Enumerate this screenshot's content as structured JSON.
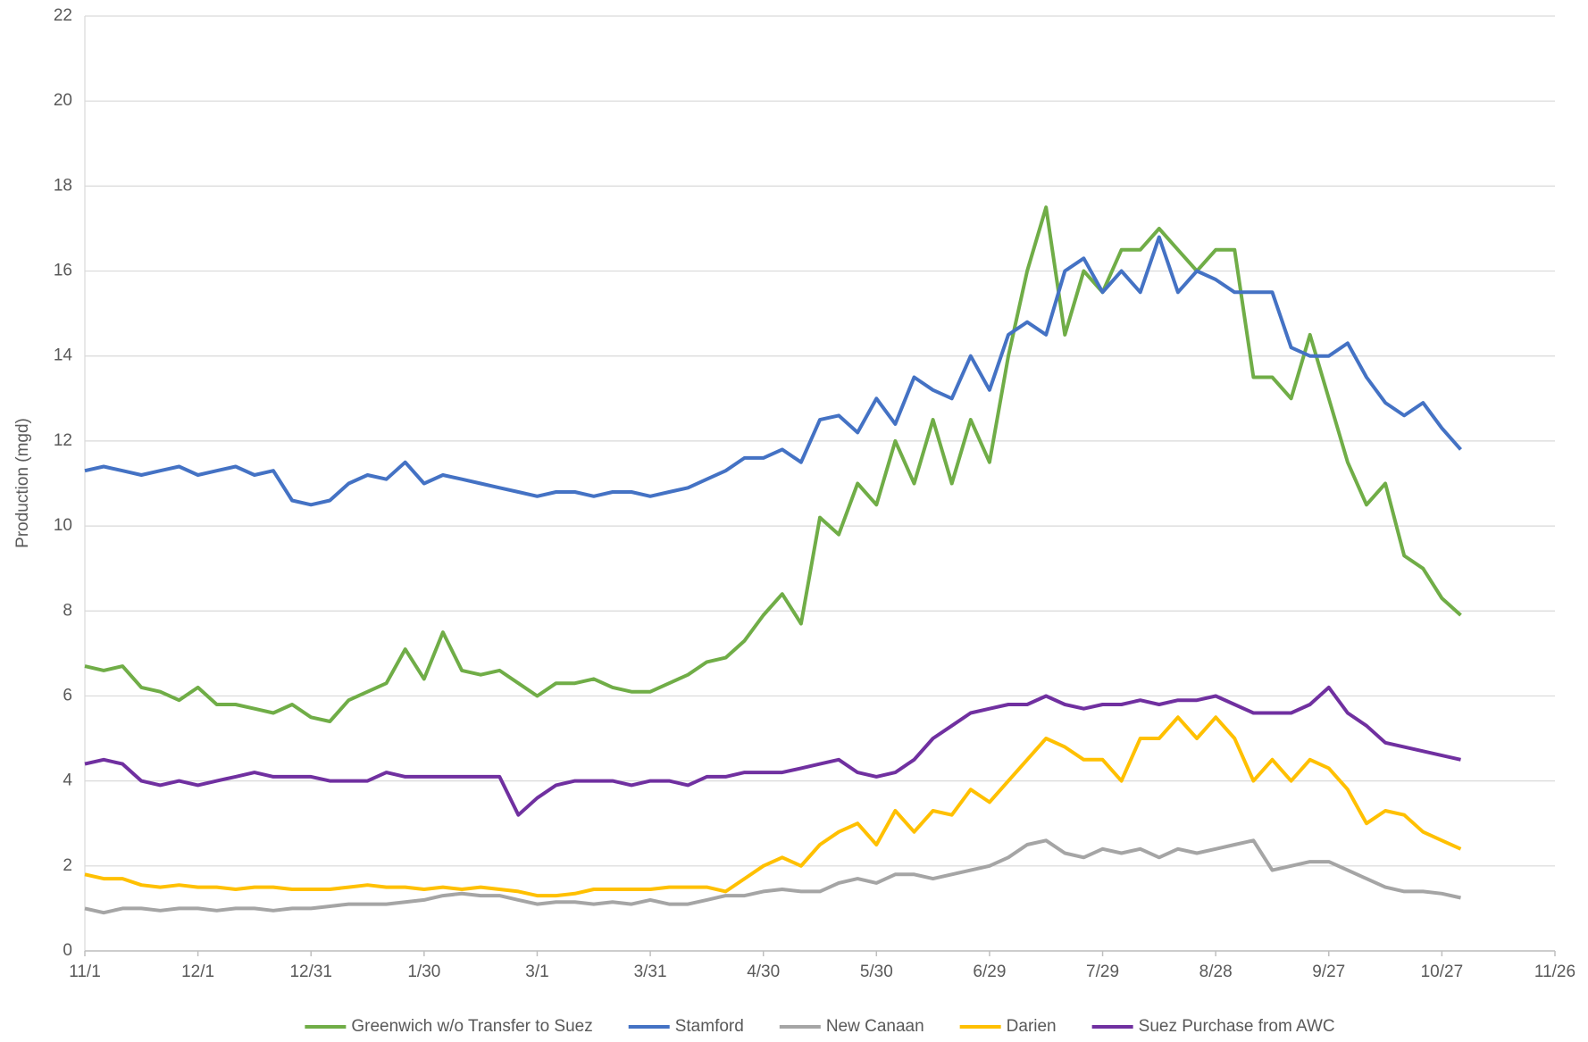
{
  "chart_data": {
    "type": "line",
    "ylabel": "Production (mgd)",
    "x": [
      0,
      5,
      10,
      15,
      20,
      25,
      30,
      35,
      40,
      45,
      50,
      55,
      60,
      65,
      70,
      75,
      80,
      85,
      90,
      95,
      100,
      105,
      110,
      115,
      120,
      125,
      130,
      135,
      140,
      145,
      150,
      155,
      160,
      165,
      170,
      175,
      180,
      185,
      190,
      195,
      200,
      205,
      210,
      215,
      220,
      225,
      230,
      235,
      240,
      245,
      250,
      255,
      260,
      265,
      270,
      275,
      280,
      285,
      290,
      295,
      300,
      305,
      310,
      315,
      320,
      325,
      330,
      335,
      340,
      345,
      350,
      355,
      360,
      365
    ],
    "xlim": [
      0,
      390
    ],
    "xticks": [
      {
        "value": 0,
        "label": "11/1"
      },
      {
        "value": 30,
        "label": "12/1"
      },
      {
        "value": 60,
        "label": "12/31"
      },
      {
        "value": 90,
        "label": "1/30"
      },
      {
        "value": 120,
        "label": "3/1"
      },
      {
        "value": 150,
        "label": "3/31"
      },
      {
        "value": 180,
        "label": "4/30"
      },
      {
        "value": 210,
        "label": "5/30"
      },
      {
        "value": 240,
        "label": "6/29"
      },
      {
        "value": 270,
        "label": "7/29"
      },
      {
        "value": 300,
        "label": "8/28"
      },
      {
        "value": 330,
        "label": "9/27"
      },
      {
        "value": 360,
        "label": "10/27"
      },
      {
        "value": 390,
        "label": "11/26"
      }
    ],
    "ylim": [
      0,
      22
    ],
    "yticks": [
      0,
      2,
      4,
      6,
      8,
      10,
      12,
      14,
      16,
      18,
      20,
      22
    ],
    "grid": true,
    "legend": "bottom",
    "series": [
      {
        "name": "Greenwich w/o Transfer to Suez",
        "color": "#70ad47",
        "values": [
          6.7,
          6.6,
          6.7,
          6.2,
          6.1,
          5.9,
          6.2,
          5.8,
          5.8,
          5.7,
          5.6,
          5.8,
          5.5,
          5.4,
          5.9,
          6.1,
          6.3,
          7.1,
          6.4,
          7.5,
          6.6,
          6.5,
          6.6,
          6.3,
          6.0,
          6.3,
          6.3,
          6.4,
          6.2,
          6.1,
          6.1,
          6.3,
          6.5,
          6.8,
          6.9,
          7.3,
          7.9,
          8.4,
          7.7,
          10.2,
          9.8,
          11.0,
          10.5,
          12.0,
          11.0,
          12.5,
          11.0,
          12.5,
          11.5,
          14.0,
          16.0,
          17.5,
          14.5,
          16.0,
          15.5,
          16.5,
          16.5,
          17.0,
          16.5,
          16.0,
          16.5,
          16.5,
          13.5,
          13.5,
          13.0,
          14.5,
          13.0,
          11.5,
          10.5,
          11.0,
          9.3,
          9.0,
          8.3,
          7.9
        ]
      },
      {
        "name": "Stamford",
        "color": "#4472c4",
        "values": [
          11.3,
          11.4,
          11.3,
          11.2,
          11.3,
          11.4,
          11.2,
          11.3,
          11.4,
          11.2,
          11.3,
          10.6,
          10.5,
          10.6,
          11.0,
          11.2,
          11.1,
          11.5,
          11.0,
          11.2,
          11.1,
          11.0,
          10.9,
          10.8,
          10.7,
          10.8,
          10.8,
          10.7,
          10.8,
          10.8,
          10.7,
          10.8,
          10.9,
          11.1,
          11.3,
          11.6,
          11.6,
          11.8,
          11.5,
          12.5,
          12.6,
          12.2,
          13.0,
          12.4,
          13.5,
          13.2,
          13.0,
          14.0,
          13.2,
          14.5,
          14.8,
          14.5,
          16.0,
          16.3,
          15.5,
          16.0,
          15.5,
          16.8,
          15.5,
          16.0,
          15.8,
          15.5,
          15.5,
          15.5,
          14.2,
          14.0,
          14.0,
          14.3,
          13.5,
          12.9,
          12.6,
          12.9,
          12.3,
          11.8
        ]
      },
      {
        "name": "New Canaan",
        "color": "#a5a5a5",
        "values": [
          1.0,
          0.9,
          1.0,
          1.0,
          0.95,
          1.0,
          1.0,
          0.95,
          1.0,
          1.0,
          0.95,
          1.0,
          1.0,
          1.05,
          1.1,
          1.1,
          1.1,
          1.15,
          1.2,
          1.3,
          1.35,
          1.3,
          1.3,
          1.2,
          1.1,
          1.15,
          1.15,
          1.1,
          1.15,
          1.1,
          1.2,
          1.1,
          1.1,
          1.2,
          1.3,
          1.3,
          1.4,
          1.45,
          1.4,
          1.4,
          1.6,
          1.7,
          1.6,
          1.8,
          1.8,
          1.7,
          1.8,
          1.9,
          2.0,
          2.2,
          2.5,
          2.6,
          2.3,
          2.2,
          2.4,
          2.3,
          2.4,
          2.2,
          2.4,
          2.3,
          2.4,
          2.5,
          2.6,
          1.9,
          2.0,
          2.1,
          2.1,
          1.9,
          1.7,
          1.5,
          1.4,
          1.4,
          1.35,
          1.25
        ]
      },
      {
        "name": "Darien",
        "color": "#ffc000",
        "values": [
          1.8,
          1.7,
          1.7,
          1.55,
          1.5,
          1.55,
          1.5,
          1.5,
          1.45,
          1.5,
          1.5,
          1.45,
          1.45,
          1.45,
          1.5,
          1.55,
          1.5,
          1.5,
          1.45,
          1.5,
          1.45,
          1.5,
          1.45,
          1.4,
          1.3,
          1.3,
          1.35,
          1.45,
          1.45,
          1.45,
          1.45,
          1.5,
          1.5,
          1.5,
          1.4,
          1.7,
          2.0,
          2.2,
          2.0,
          2.5,
          2.8,
          3.0,
          2.5,
          3.3,
          2.8,
          3.3,
          3.2,
          3.8,
          3.5,
          4.0,
          4.5,
          5.0,
          4.8,
          4.5,
          4.5,
          4.0,
          5.0,
          5.0,
          5.5,
          5.0,
          5.5,
          5.0,
          4.0,
          4.5,
          4.0,
          4.5,
          4.3,
          3.8,
          3.0,
          3.3,
          3.2,
          2.8,
          2.6,
          2.4
        ]
      },
      {
        "name": "Suez Purchase from AWC",
        "color": "#7030a0",
        "values": [
          4.4,
          4.5,
          4.4,
          4.0,
          3.9,
          4.0,
          3.9,
          4.0,
          4.1,
          4.2,
          4.1,
          4.1,
          4.1,
          4.0,
          4.0,
          4.0,
          4.2,
          4.1,
          4.1,
          4.1,
          4.1,
          4.1,
          4.1,
          3.2,
          3.6,
          3.9,
          4.0,
          4.0,
          4.0,
          3.9,
          4.0,
          4.0,
          3.9,
          4.1,
          4.1,
          4.2,
          4.2,
          4.2,
          4.3,
          4.4,
          4.5,
          4.2,
          4.1,
          4.2,
          4.5,
          5.0,
          5.3,
          5.6,
          5.7,
          5.8,
          5.8,
          6.0,
          5.8,
          5.7,
          5.8,
          5.8,
          5.9,
          5.8,
          5.9,
          5.9,
          6.0,
          5.8,
          5.6,
          5.6,
          5.6,
          5.8,
          6.2,
          5.6,
          5.3,
          4.9,
          4.8,
          4.7,
          4.6,
          4.5
        ]
      }
    ]
  }
}
